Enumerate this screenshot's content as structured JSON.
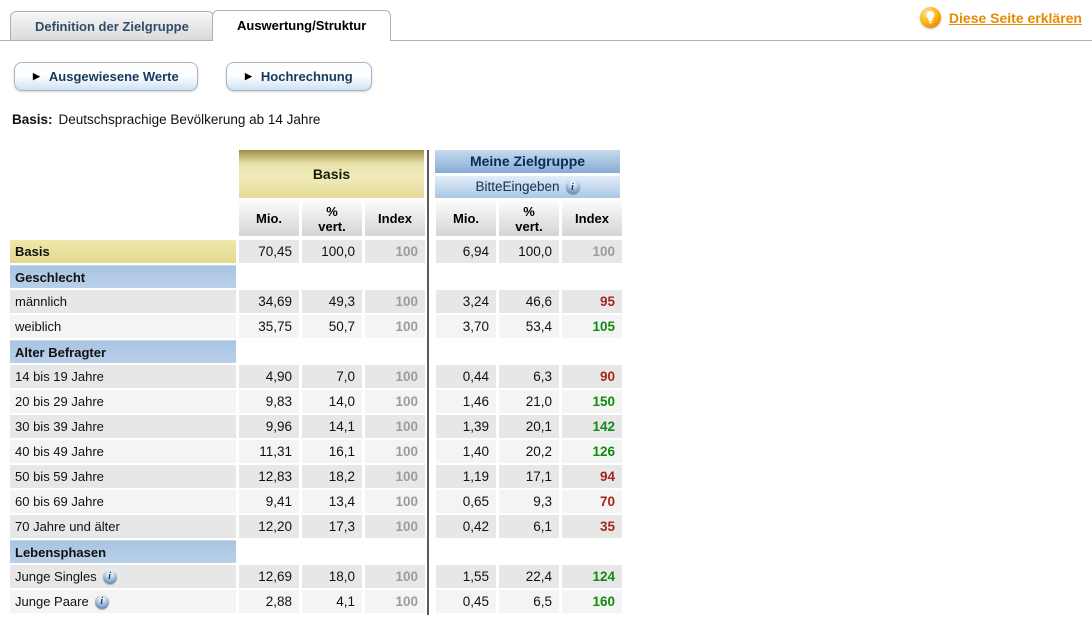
{
  "page": {
    "tabs": [
      {
        "label": "Definition der Zielgruppe",
        "active": false
      },
      {
        "label": "Auswertung/Struktur",
        "active": true
      }
    ],
    "help_link": "Diese Seite erklären",
    "buttons": [
      "Ausgewiesene Werte",
      "Hochrechnung"
    ],
    "button_arrow": "▶",
    "basis": {
      "label": "Basis:",
      "value": "Deutschsprachige Bevölkerung ab 14 Jahre"
    }
  },
  "table": {
    "group_basis": {
      "title": "Basis"
    },
    "group_target": {
      "title": "Meine Zielgruppe",
      "subtitle": "BitteEingeben",
      "has_info": true
    },
    "columns": [
      "Mio.",
      "%\nvert.",
      "Index"
    ],
    "rows": [
      {
        "type": "basis",
        "label": "Basis",
        "basis": [
          "70,45",
          "100,0",
          "100"
        ],
        "target": [
          "6,94",
          "100,0",
          "100"
        ],
        "index_state": "neutral"
      },
      {
        "type": "section",
        "label": "Geschlecht"
      },
      {
        "type": "data",
        "label": "männlich",
        "basis": [
          "34,69",
          "49,3",
          "100"
        ],
        "target": [
          "3,24",
          "46,6",
          "95"
        ],
        "index_state": "neg"
      },
      {
        "type": "data",
        "label": "weiblich",
        "basis": [
          "35,75",
          "50,7",
          "100"
        ],
        "target": [
          "3,70",
          "53,4",
          "105"
        ],
        "index_state": "pos"
      },
      {
        "type": "section",
        "label": "Alter Befragter"
      },
      {
        "type": "data",
        "label": "14 bis 19 Jahre",
        "basis": [
          "4,90",
          "7,0",
          "100"
        ],
        "target": [
          "0,44",
          "6,3",
          "90"
        ],
        "index_state": "neg"
      },
      {
        "type": "data",
        "label": "20 bis 29 Jahre",
        "basis": [
          "9,83",
          "14,0",
          "100"
        ],
        "target": [
          "1,46",
          "21,0",
          "150"
        ],
        "index_state": "pos"
      },
      {
        "type": "data",
        "label": "30 bis 39 Jahre",
        "basis": [
          "9,96",
          "14,1",
          "100"
        ],
        "target": [
          "1,39",
          "20,1",
          "142"
        ],
        "index_state": "pos"
      },
      {
        "type": "data",
        "label": "40 bis 49 Jahre",
        "basis": [
          "11,31",
          "16,1",
          "100"
        ],
        "target": [
          "1,40",
          "20,2",
          "126"
        ],
        "index_state": "pos"
      },
      {
        "type": "data",
        "label": "50 bis 59 Jahre",
        "basis": [
          "12,83",
          "18,2",
          "100"
        ],
        "target": [
          "1,19",
          "17,1",
          "94"
        ],
        "index_state": "neg"
      },
      {
        "type": "data",
        "label": "60 bis 69 Jahre",
        "basis": [
          "9,41",
          "13,4",
          "100"
        ],
        "target": [
          "0,65",
          "9,3",
          "70"
        ],
        "index_state": "neg"
      },
      {
        "type": "data",
        "label": "70 Jahre und älter",
        "basis": [
          "12,20",
          "17,3",
          "100"
        ],
        "target": [
          "0,42",
          "6,1",
          "35"
        ],
        "index_state": "neg"
      },
      {
        "type": "section",
        "label": "Lebensphasen"
      },
      {
        "type": "data",
        "label": "Junge Singles",
        "info": true,
        "basis": [
          "12,69",
          "18,0",
          "100"
        ],
        "target": [
          "1,55",
          "22,4",
          "124"
        ],
        "index_state": "pos"
      },
      {
        "type": "data",
        "label": "Junge Paare",
        "info": true,
        "basis": [
          "2,88",
          "4,1",
          "100"
        ],
        "target": [
          "0,45",
          "6,5",
          "160"
        ],
        "index_state": "pos"
      }
    ]
  },
  "colors": {
    "index_positive": "#0f8c10",
    "index_negative": "#a8261b",
    "index_neutral": "#9c9c9c",
    "link_orange": "#e68a00",
    "basis_yellow": "#e8e098",
    "section_blue": "#aec8e4"
  }
}
